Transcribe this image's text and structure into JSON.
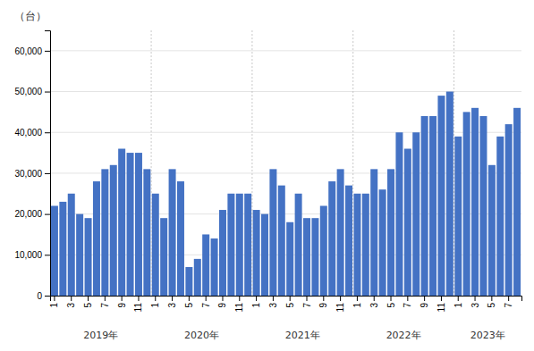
{
  "chart_data": {
    "type": "bar",
    "ylabel": "（台）",
    "categories": [
      "1",
      null,
      "3",
      null,
      "5",
      null,
      "7",
      null,
      "9",
      null,
      "11",
      null,
      "1",
      null,
      "3",
      null,
      "5",
      null,
      "7",
      null,
      "9",
      null,
      "11",
      null,
      "1",
      null,
      "3",
      null,
      "5",
      null,
      "7",
      null,
      "9",
      null,
      "11",
      null,
      "1",
      null,
      "3",
      null,
      "5",
      null,
      "7",
      null,
      "9",
      null,
      "11",
      null,
      "1",
      null,
      "3",
      null,
      "5",
      null,
      "7",
      null
    ],
    "values": [
      22000,
      23000,
      25000,
      20000,
      19000,
      28000,
      31000,
      32000,
      36000,
      35000,
      35000,
      31000,
      25000,
      19000,
      31000,
      28000,
      7000,
      9000,
      15000,
      14000,
      21000,
      25000,
      25000,
      25000,
      21000,
      20000,
      31000,
      27000,
      18000,
      25000,
      19000,
      19000,
      22000,
      28000,
      31000,
      27000,
      25000,
      25000,
      31000,
      26000,
      31000,
      40000,
      36000,
      40000,
      44000,
      44000,
      49000,
      50000,
      39000,
      45000,
      46000,
      44000,
      32000,
      39000,
      42000,
      46000
    ],
    "annotations": [
      "2019年",
      "2020年",
      "2021年",
      "2022年",
      "2023年"
    ],
    "color": "#4472C4",
    "ylim": [
      0,
      65000
    ],
    "yticks": [
      0,
      {
        "value": 10000,
        "label": "10,000"
      },
      {
        "value": 20000,
        "label": "20,000"
      },
      {
        "value": 30000,
        "label": "30,000"
      },
      {
        "value": 40000,
        "label": "40,000"
      },
      {
        "value": 50000,
        "label": "50,000"
      },
      {
        "value": 60000,
        "label": "60,000"
      }
    ],
    "grid": true
  }
}
